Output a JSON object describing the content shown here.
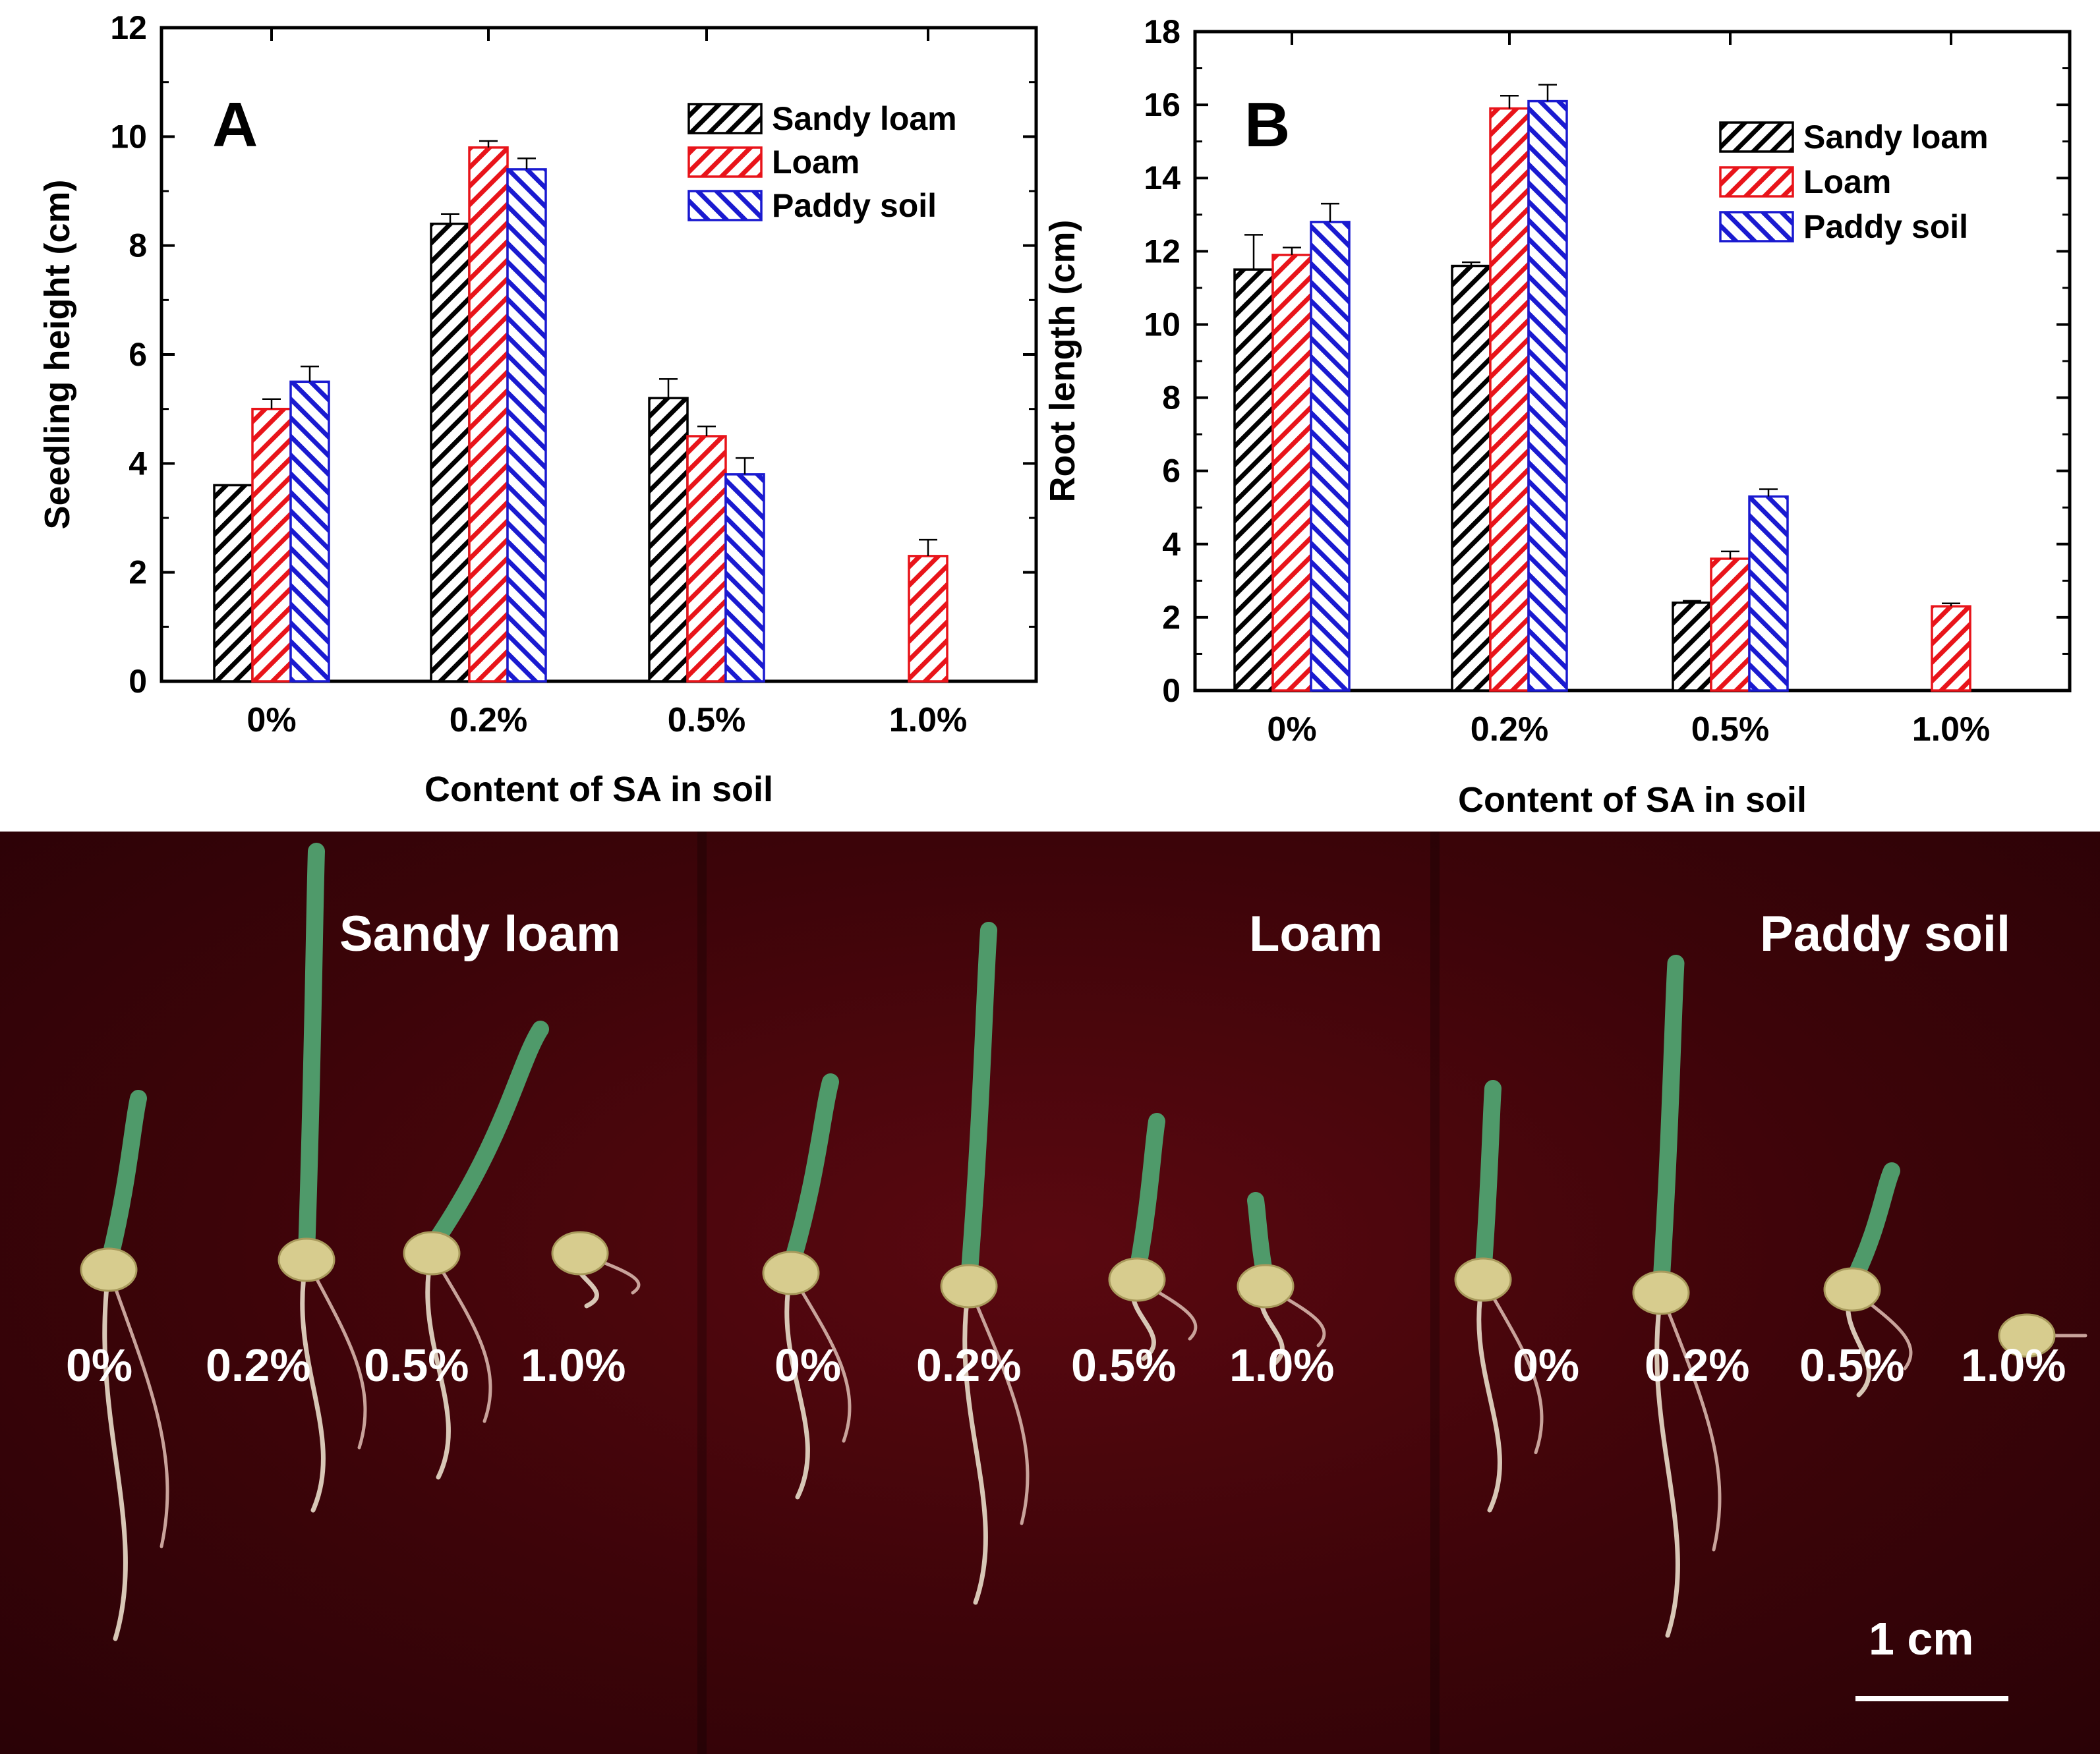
{
  "chart_data": [
    {
      "type": "bar",
      "panel_label": "A",
      "categories": [
        "0%",
        "0.2%",
        "0.5%",
        "1.0%"
      ],
      "series": [
        {
          "name": "Sandy loam",
          "color": "#000000",
          "values": [
            3.6,
            8.4,
            5.2,
            null
          ],
          "errors": [
            0.0,
            0.18,
            0.35,
            null
          ]
        },
        {
          "name": "Loam",
          "color": "#e8141a",
          "values": [
            5.0,
            9.8,
            4.5,
            2.3
          ],
          "errors": [
            0.18,
            0.12,
            0.18,
            0.3
          ]
        },
        {
          "name": "Paddy soil",
          "color": "#1a1ad0",
          "values": [
            5.5,
            9.4,
            3.8,
            null
          ],
          "errors": [
            0.28,
            0.2,
            0.3,
            null
          ]
        }
      ],
      "xlabel": "Content of SA in soil",
      "ylabel": "Seedling height (cm)",
      "ylim": [
        0,
        12
      ],
      "yticks": [
        "0",
        "2",
        "4",
        "6",
        "8",
        "10",
        "12"
      ],
      "legend_position": "top-right"
    },
    {
      "type": "bar",
      "panel_label": "B",
      "categories": [
        "0%",
        "0.2%",
        "0.5%",
        "1.0%"
      ],
      "series": [
        {
          "name": "Sandy loam",
          "color": "#000000",
          "values": [
            11.5,
            11.6,
            2.4,
            null
          ],
          "errors": [
            0.95,
            0.1,
            0.05,
            null
          ]
        },
        {
          "name": "Loam",
          "color": "#e8141a",
          "values": [
            11.9,
            15.9,
            3.6,
            2.3
          ],
          "errors": [
            0.2,
            0.35,
            0.2,
            0.08
          ]
        },
        {
          "name": "Paddy soil",
          "color": "#1a1ad0",
          "values": [
            12.8,
            16.1,
            5.3,
            null
          ],
          "errors": [
            0.5,
            0.45,
            0.2,
            null
          ]
        }
      ],
      "xlabel": "Content of SA in soil",
      "ylabel": "Root length (cm)",
      "ylim": [
        0,
        18
      ],
      "yticks": [
        "0",
        "2",
        "4",
        "6",
        "8",
        "10",
        "12",
        "14",
        "16",
        "18"
      ],
      "legend_position": "top-right"
    }
  ],
  "photo": {
    "panels": [
      {
        "title": "Sandy loam",
        "labels": [
          "0%",
          "0.2%",
          "0.5%",
          "1.0%"
        ]
      },
      {
        "title": "Loam",
        "labels": [
          "0%",
          "0.2%",
          "0.5%",
          "1.0%"
        ]
      },
      {
        "title": "Paddy soil",
        "labels": [
          "0%",
          "0.2%",
          "0.5%",
          "1.0%"
        ]
      }
    ],
    "scale_label": "1 cm"
  }
}
